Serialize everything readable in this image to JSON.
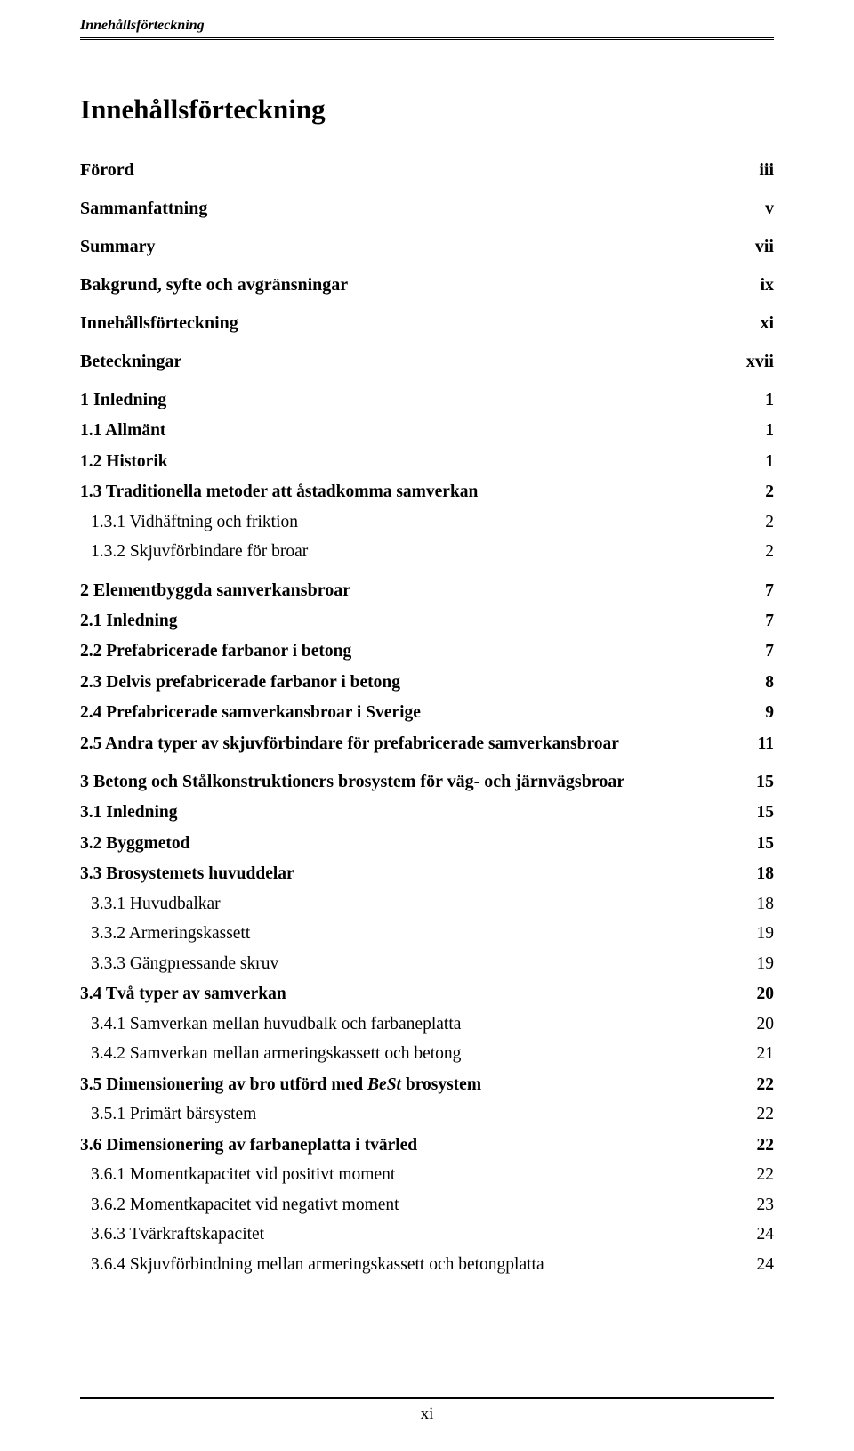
{
  "header": {
    "title": "Innehållsförteckning"
  },
  "tocTitle": "Innehållsförteckning",
  "entries": [
    {
      "level": 1,
      "label": "Förord",
      "page": "iii"
    },
    {
      "level": 1,
      "label": "Sammanfattning",
      "page": "v"
    },
    {
      "level": 1,
      "label": "Summary",
      "page": "vii"
    },
    {
      "level": 1,
      "label": "Bakgrund, syfte och avgränsningar",
      "page": "ix"
    },
    {
      "level": 1,
      "label": "Innehållsförteckning",
      "page": "xi"
    },
    {
      "level": 1,
      "label": "Beteckningar",
      "page": "xvii"
    },
    {
      "level": 1,
      "label": "1 Inledning",
      "page": "1"
    },
    {
      "level": 2,
      "label": "1.1 Allmänt",
      "page": "1"
    },
    {
      "level": 2,
      "label": "1.2 Historik",
      "page": "1"
    },
    {
      "level": 2,
      "label": "1.3 Traditionella metoder att åstadkomma samverkan",
      "page": "2"
    },
    {
      "level": 3,
      "label": "1.3.1 Vidhäftning och friktion",
      "page": "2"
    },
    {
      "level": 3,
      "label": "1.3.2 Skjuvförbindare för broar",
      "page": "2"
    },
    {
      "level": 1,
      "label": "2 Elementbyggda samverkansbroar",
      "page": "7"
    },
    {
      "level": 2,
      "label": "2.1 Inledning",
      "page": "7"
    },
    {
      "level": 2,
      "label": "2.2 Prefabricerade farbanor i betong",
      "page": "7"
    },
    {
      "level": 2,
      "label": "2.3 Delvis prefabricerade farbanor i betong",
      "page": "8"
    },
    {
      "level": 2,
      "label": "2.4 Prefabricerade samverkansbroar i Sverige",
      "page": "9"
    },
    {
      "level": 2,
      "label": "2.5 Andra typer av skjuvförbindare för prefabricerade samverkansbroar",
      "page": "11"
    },
    {
      "level": 1,
      "label": "3 Betong och Stålkonstruktioners brosystem för väg- och järnvägsbroar",
      "page": "15"
    },
    {
      "level": 2,
      "label": "3.1 Inledning",
      "page": "15"
    },
    {
      "level": 2,
      "label": "3.2 Byggmetod",
      "page": "15"
    },
    {
      "level": 2,
      "label": "3.3 Brosystemets huvuddelar",
      "page": "18"
    },
    {
      "level": 3,
      "label": "3.3.1 Huvudbalkar",
      "page": "18"
    },
    {
      "level": 3,
      "label": "3.3.2 Armeringskassett",
      "page": "19"
    },
    {
      "level": 3,
      "label": "3.3.3 Gängpressande skruv",
      "page": "19"
    },
    {
      "level": 2,
      "label": "3.4 Två typer av samverkan",
      "page": "20"
    },
    {
      "level": 3,
      "label": "3.4.1 Samverkan mellan huvudbalk och farbaneplatta",
      "page": "20"
    },
    {
      "level": 3,
      "label": "3.4.2 Samverkan mellan armeringskassett och betong",
      "page": "21"
    },
    {
      "level": 2,
      "label_pre": "3.5 Dimensionering av bro utförd med ",
      "label_ital": "BeSt",
      "label_post": " brosystem",
      "page": "22",
      "mixed": true
    },
    {
      "level": 3,
      "label": "3.5.1 Primärt bärsystem",
      "page": "22"
    },
    {
      "level": 2,
      "label": "3.6 Dimensionering av farbaneplatta i tvärled",
      "page": "22"
    },
    {
      "level": 3,
      "label": "3.6.1 Momentkapacitet vid positivt moment",
      "page": "22"
    },
    {
      "level": 3,
      "label": "3.6.2 Momentkapacitet vid negativt moment",
      "page": "23"
    },
    {
      "level": 3,
      "label": "3.6.3 Tvärkraftskapacitet",
      "page": "24"
    },
    {
      "level": 3,
      "label": "3.6.4 Skjuvförbindning mellan armeringskassett och betongplatta",
      "page": "24"
    }
  ],
  "pageNumber": "xi"
}
